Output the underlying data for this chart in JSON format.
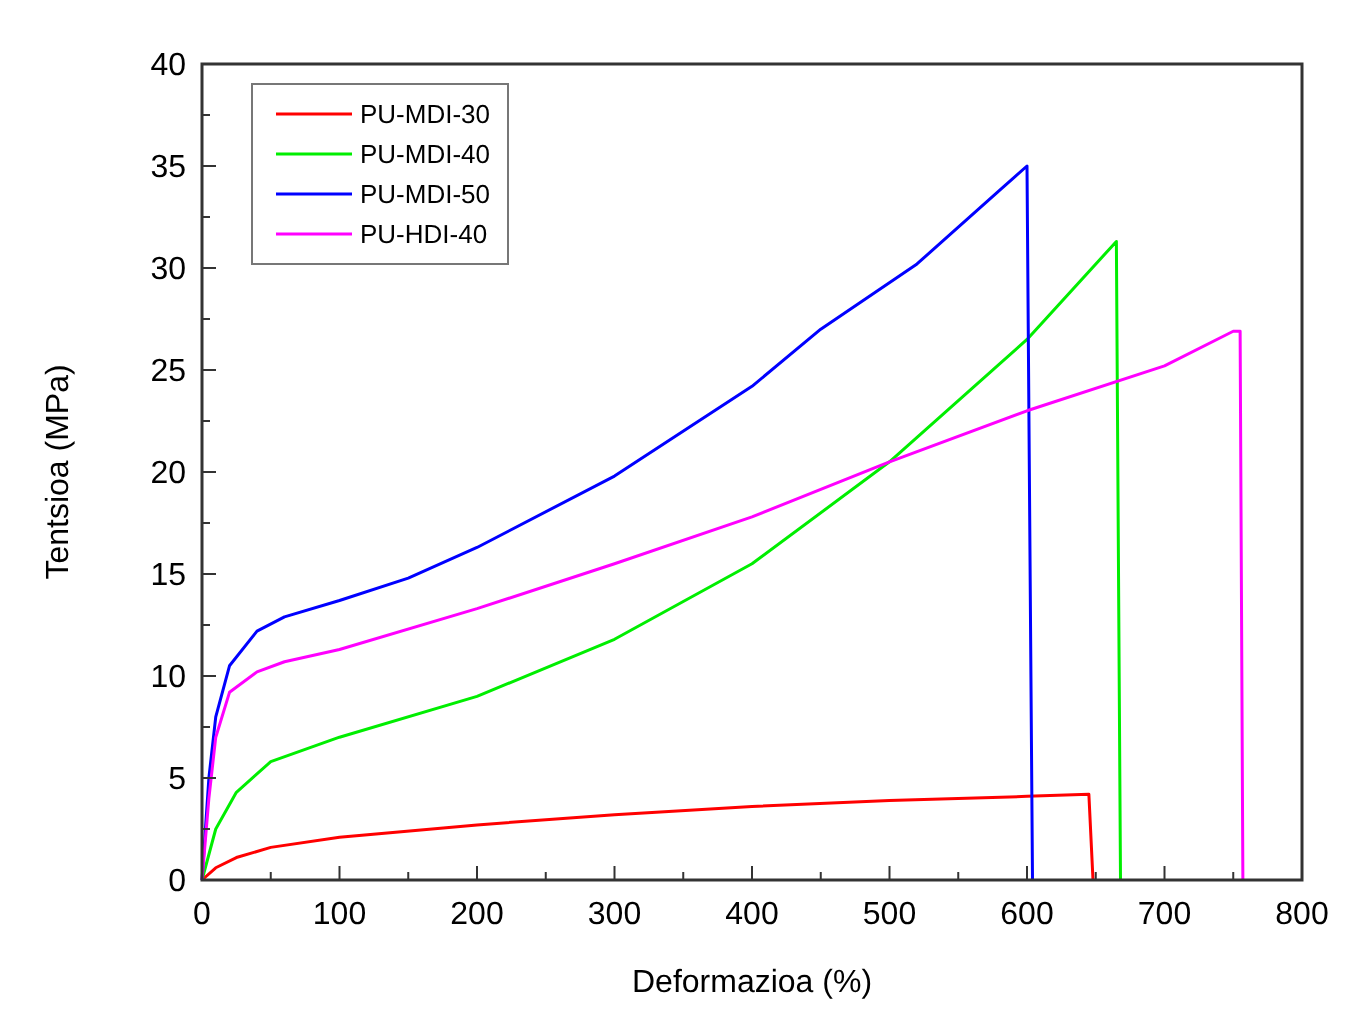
{
  "chart_data": {
    "type": "line",
    "xlabel": "Deformazioa (%)",
    "ylabel": "Tentsioa (MPa)",
    "xlim": [
      0,
      800
    ],
    "ylim": [
      0,
      40
    ],
    "xticks": [
      0,
      {
        "value": 50,
        "label": null
      },
      100,
      {
        "value": 150,
        "label": null
      },
      200,
      {
        "value": 250,
        "label": null
      },
      300,
      {
        "value": 350,
        "label": null
      },
      400,
      {
        "value": 450,
        "label": null
      },
      500,
      {
        "value": 550,
        "label": null
      },
      600,
      {
        "value": 650,
        "label": null
      },
      700,
      {
        "value": 750,
        "label": null
      },
      800
    ],
    "yticks": [
      0,
      {
        "value": 2.5,
        "label": null
      },
      5,
      {
        "value": 7.5,
        "label": null
      },
      10,
      {
        "value": 12.5,
        "label": null
      },
      15,
      {
        "value": 17.5,
        "label": null
      },
      20,
      {
        "value": 22.5,
        "label": null
      },
      25,
      {
        "value": 27.5,
        "label": null
      },
      30,
      {
        "value": 32.5,
        "label": null
      },
      35,
      {
        "value": 37.5,
        "label": null
      },
      40
    ],
    "grid": false,
    "legend": "top left",
    "marker": "none",
    "line_style": "solid",
    "series": [
      {
        "name": "PU-MDI-30",
        "color": "#ff0000",
        "x": [
          0,
          10,
          25,
          50,
          100,
          200,
          300,
          400,
          500,
          600,
          645,
          648
        ],
        "values": [
          0,
          0.6,
          1.1,
          1.6,
          2.1,
          2.7,
          3.2,
          3.6,
          3.9,
          4.1,
          4.2,
          0
        ]
      },
      {
        "name": "PU-MDI-40",
        "color": "#00ee00",
        "x": [
          0,
          10,
          25,
          50,
          100,
          200,
          300,
          400,
          500,
          600,
          665,
          668
        ],
        "values": [
          0,
          2.5,
          4.3,
          5.8,
          7.0,
          9.0,
          11.8,
          15.5,
          20.5,
          26.5,
          31.3,
          0
        ]
      },
      {
        "name": "PU-MDI-50",
        "color": "#0000ff",
        "x": [
          0,
          5,
          10,
          20,
          40,
          60,
          100,
          150,
          200,
          300,
          400,
          450,
          520,
          580,
          600,
          604
        ],
        "values": [
          0,
          5,
          8,
          10.5,
          12.2,
          12.9,
          13.7,
          14.8,
          16.3,
          19.8,
          24.2,
          27,
          30.2,
          33.8,
          35,
          0
        ]
      },
      {
        "name": "PU-HDI-40",
        "color": "#ff00ff",
        "x": [
          0,
          5,
          10,
          20,
          40,
          60,
          100,
          200,
          300,
          400,
          500,
          600,
          700,
          750,
          755,
          757
        ],
        "values": [
          0,
          4,
          7,
          9.2,
          10.2,
          10.7,
          11.3,
          13.3,
          15.5,
          17.8,
          20.5,
          23,
          25.2,
          26.9,
          26.9,
          0
        ]
      }
    ]
  }
}
